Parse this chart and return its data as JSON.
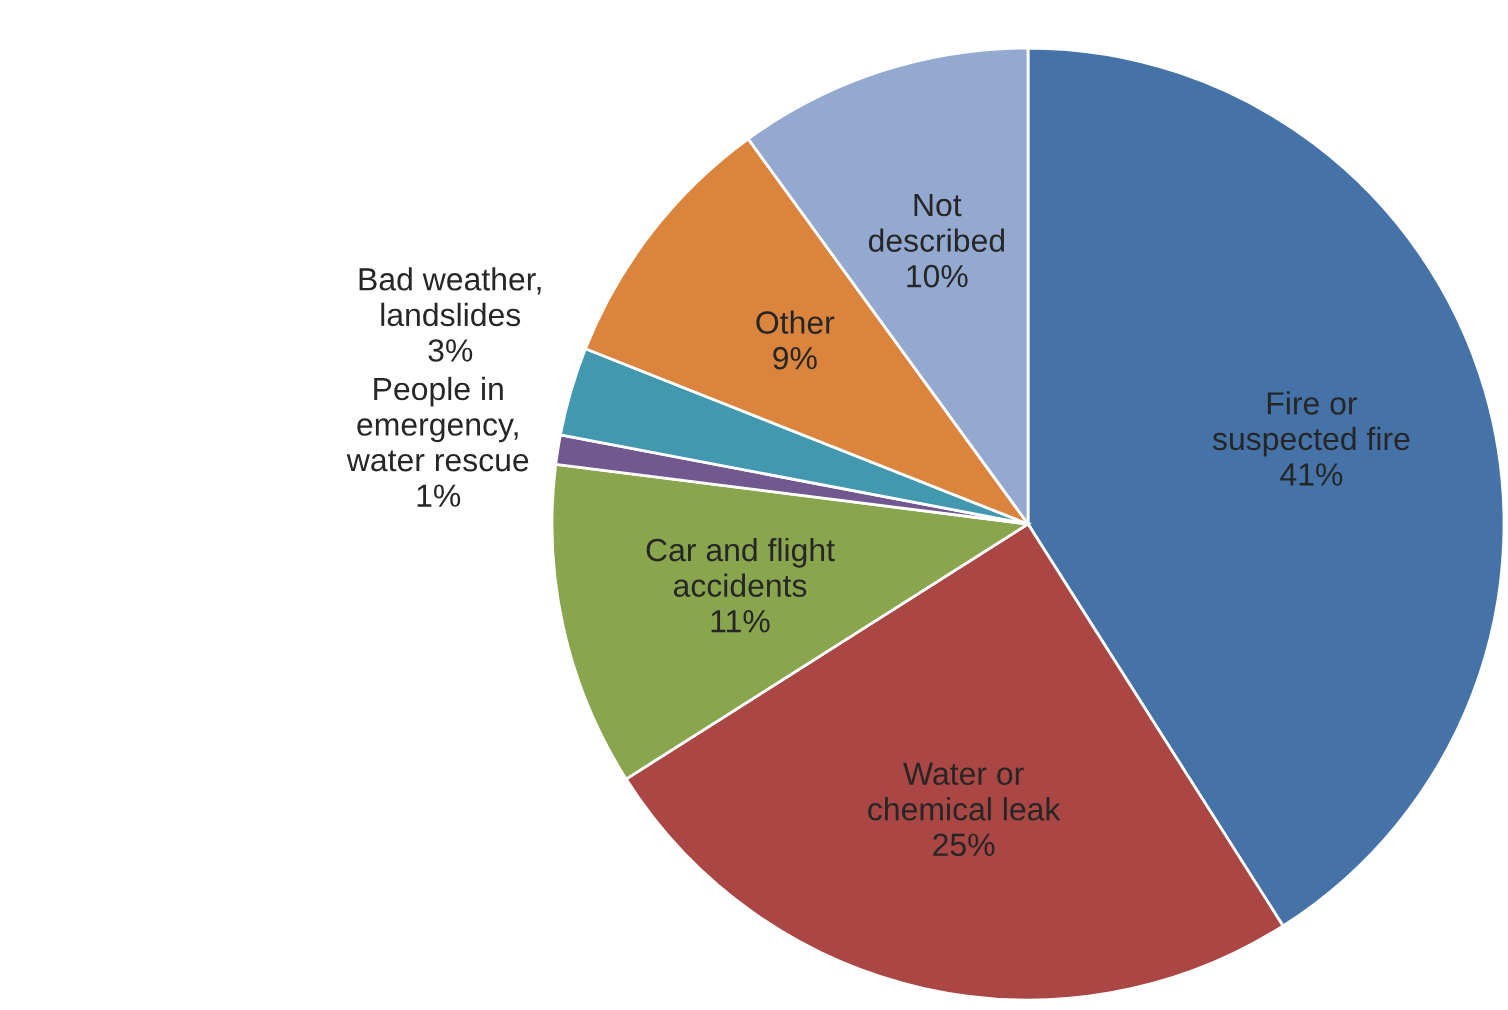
{
  "chart_data": {
    "type": "pie",
    "categories": [
      "Fire or suspected fire",
      "Water or chemical leak",
      "Car and flight accidents",
      "People in emergency, water rescue",
      "Bad weather, landslides",
      "Other",
      "Not described"
    ],
    "values": [
      41,
      25,
      11,
      1,
      3,
      9,
      10
    ],
    "value_labels": [
      "41%",
      "25%",
      "11%",
      "1%",
      "3%",
      "9%",
      "10%"
    ],
    "colors": [
      "#4572a7",
      "#aa4643",
      "#89a54e",
      "#71588f",
      "#4198af",
      "#db843d",
      "#93a9cf"
    ],
    "legend": false
  }
}
